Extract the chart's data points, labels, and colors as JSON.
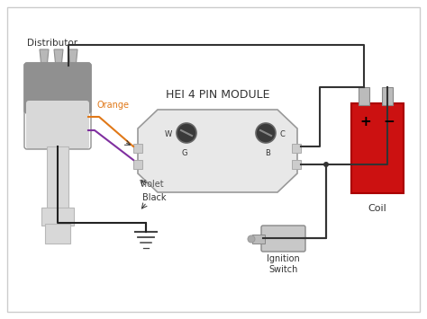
{
  "title": "HEI 4 PIN MODULE",
  "bg_color": "#ffffff",
  "border_color": "#cccccc",
  "distributor_label": "Distributor",
  "coil_label": "Coil",
  "ignition_label": "Ignition\nSwitch",
  "wire_labels": [
    "Orange",
    "Violet",
    "Black"
  ],
  "pin_labels_left": [
    "W",
    "G"
  ],
  "pin_labels_right": [
    "C",
    "B"
  ],
  "module_fill": "#e8e8e8",
  "module_edge": "#999999",
  "dist_dark": "#909090",
  "dist_mid": "#b8b8b8",
  "dist_light": "#d8d8d8",
  "coil_fill": "#cc1111",
  "coil_edge": "#aa0000",
  "terminal_fill": "#bbbbbb",
  "terminal_edge": "#888888",
  "ignition_fill": "#c8c8c8",
  "ignition_edge": "#888888",
  "ground_color": "#444444",
  "wire_orange": "#e07818",
  "wire_violet": "#8030a0",
  "wire_black": "#222222",
  "wire_dark": "#333333",
  "text_color": "#333333",
  "label_color": "#555555"
}
